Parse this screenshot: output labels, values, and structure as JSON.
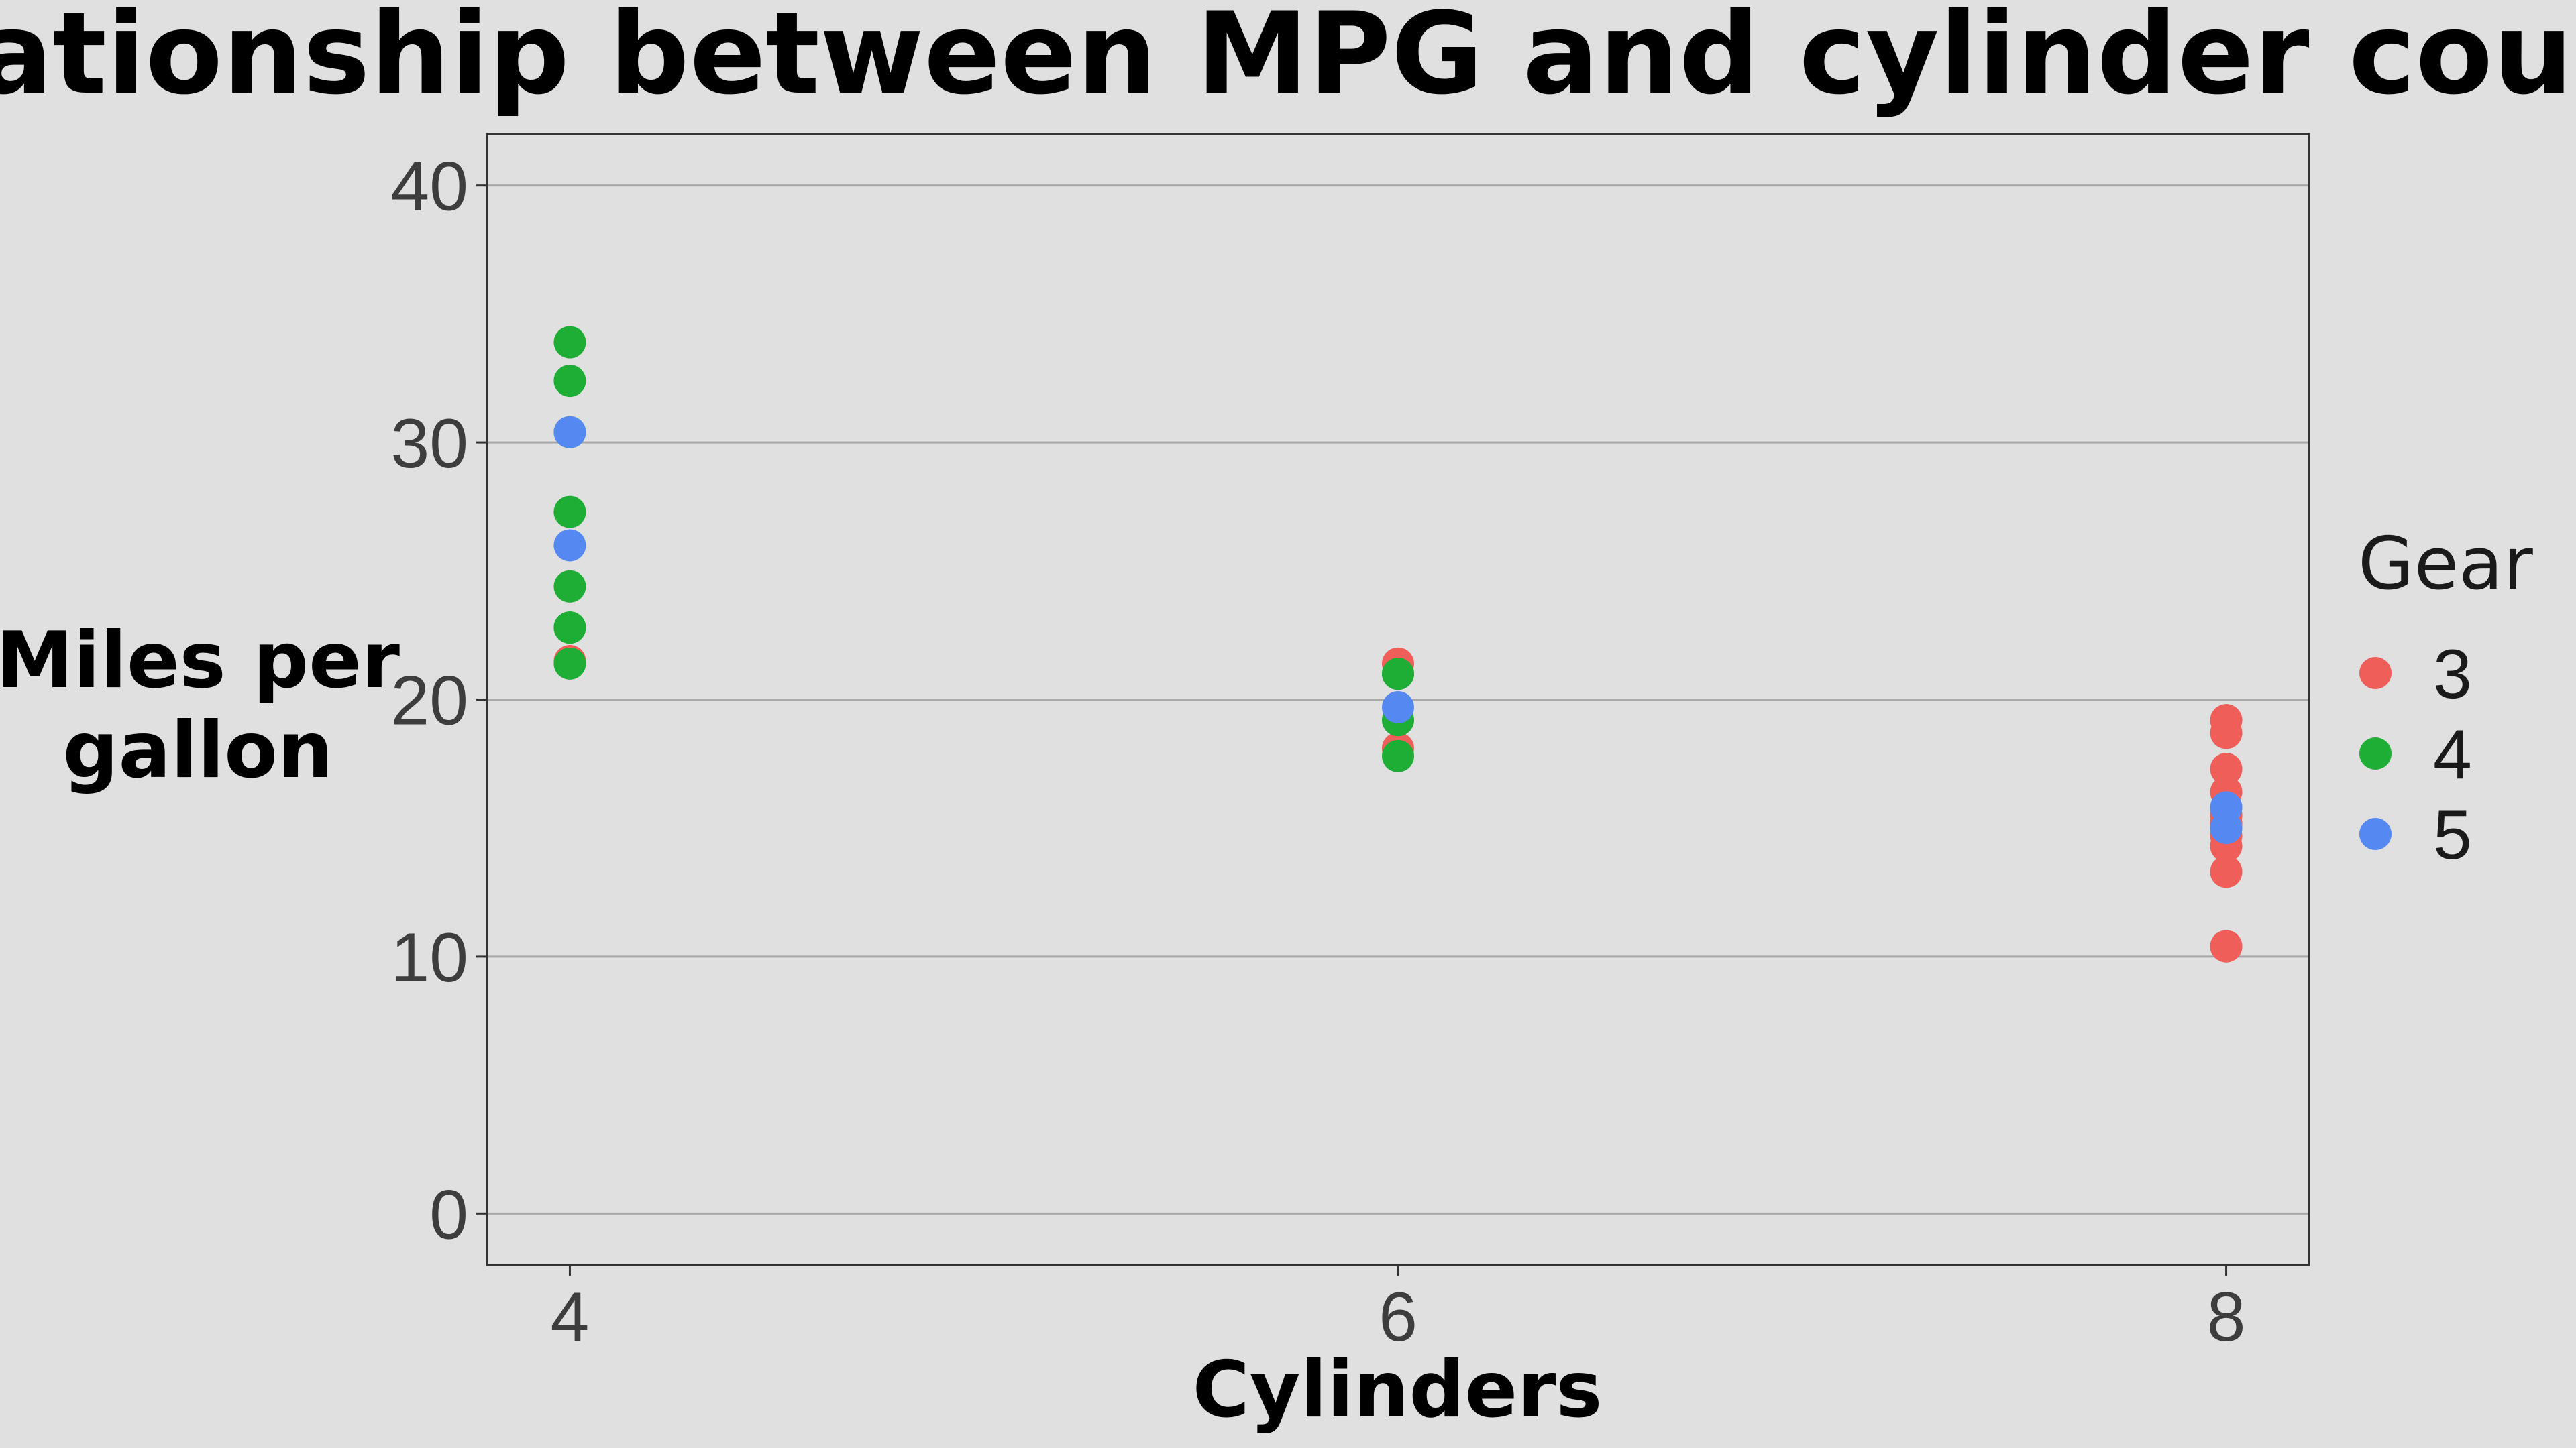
{
  "chart_data": {
    "type": "scatter",
    "title": "Relationship between MPG and cylinder count",
    "xlabel": "Cylinders",
    "ylabel": "Miles per gallon",
    "x_ticks": [
      "4",
      "6",
      "8"
    ],
    "y_ticks": [
      "0",
      "10",
      "20",
      "30",
      "40"
    ],
    "xlim": [
      3.8,
      8.2
    ],
    "ylim": [
      -2,
      42
    ],
    "grid": "horizontal",
    "legend_title": "Gear",
    "legend_position": "right",
    "series": [
      {
        "name": "3",
        "color": "#f05e5a",
        "points": [
          {
            "x": 4,
            "y": 21.5
          },
          {
            "x": 6,
            "y": 21.4
          },
          {
            "x": 6,
            "y": 18.1
          },
          {
            "x": 8,
            "y": 18.7
          },
          {
            "x": 8,
            "y": 14.3
          },
          {
            "x": 8,
            "y": 16.4
          },
          {
            "x": 8,
            "y": 17.3
          },
          {
            "x": 8,
            "y": 15.2
          },
          {
            "x": 8,
            "y": 10.4
          },
          {
            "x": 8,
            "y": 10.4
          },
          {
            "x": 8,
            "y": 14.7
          },
          {
            "x": 8,
            "y": 15.5
          },
          {
            "x": 8,
            "y": 15.2
          },
          {
            "x": 8,
            "y": 13.3
          },
          {
            "x": 8,
            "y": 19.2
          }
        ]
      },
      {
        "name": "4",
        "color": "#1ead35",
        "points": [
          {
            "x": 6,
            "y": 21.0
          },
          {
            "x": 6,
            "y": 21.0
          },
          {
            "x": 4,
            "y": 22.8
          },
          {
            "x": 4,
            "y": 24.4
          },
          {
            "x": 4,
            "y": 22.8
          },
          {
            "x": 6,
            "y": 19.2
          },
          {
            "x": 6,
            "y": 17.8
          },
          {
            "x": 4,
            "y": 32.4
          },
          {
            "x": 4,
            "y": 30.4
          },
          {
            "x": 4,
            "y": 33.9
          },
          {
            "x": 4,
            "y": 27.3
          },
          {
            "x": 4,
            "y": 21.4
          }
        ]
      },
      {
        "name": "5",
        "color": "#5588f0",
        "points": [
          {
            "x": 4,
            "y": 26.0
          },
          {
            "x": 4,
            "y": 30.4
          },
          {
            "x": 8,
            "y": 15.8
          },
          {
            "x": 6,
            "y": 19.7
          },
          {
            "x": 8,
            "y": 15.0
          }
        ]
      }
    ]
  }
}
